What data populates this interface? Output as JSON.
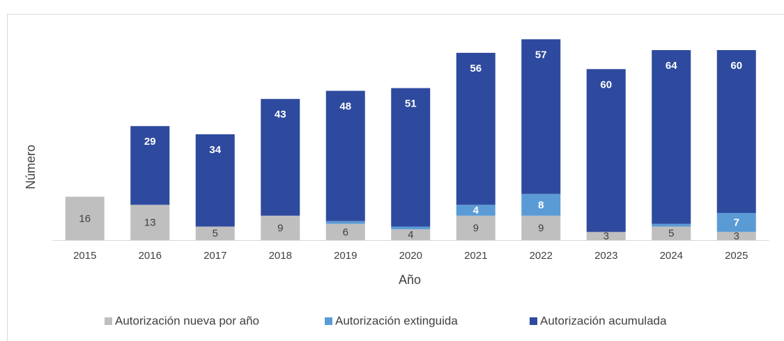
{
  "chart_data": {
    "type": "stacked_bar",
    "x_label": "Año",
    "y_label": "Número",
    "categories": [
      "2015",
      "2016",
      "2017",
      "2018",
      "2019",
      "2020",
      "2021",
      "2022",
      "2023",
      "2024",
      "2025"
    ],
    "series": [
      {
        "name": "Autorización nueva por año",
        "color": "#bfbfbf",
        "values": [
          16,
          13,
          5,
          9,
          6,
          4,
          9,
          9,
          3,
          5,
          3
        ]
      },
      {
        "name": "Autorización extinguida",
        "color": "#5b9bd5",
        "values": [
          null,
          null,
          null,
          null,
          1,
          1,
          4,
          8,
          null,
          1,
          7
        ]
      },
      {
        "name": "Autorización acumulada",
        "color": "#2e4a9e",
        "values": [
          null,
          29,
          34,
          43,
          48,
          51,
          56,
          57,
          60,
          64,
          60
        ]
      }
    ],
    "ylim": [
      0,
      80
    ],
    "legend": "bottom"
  }
}
